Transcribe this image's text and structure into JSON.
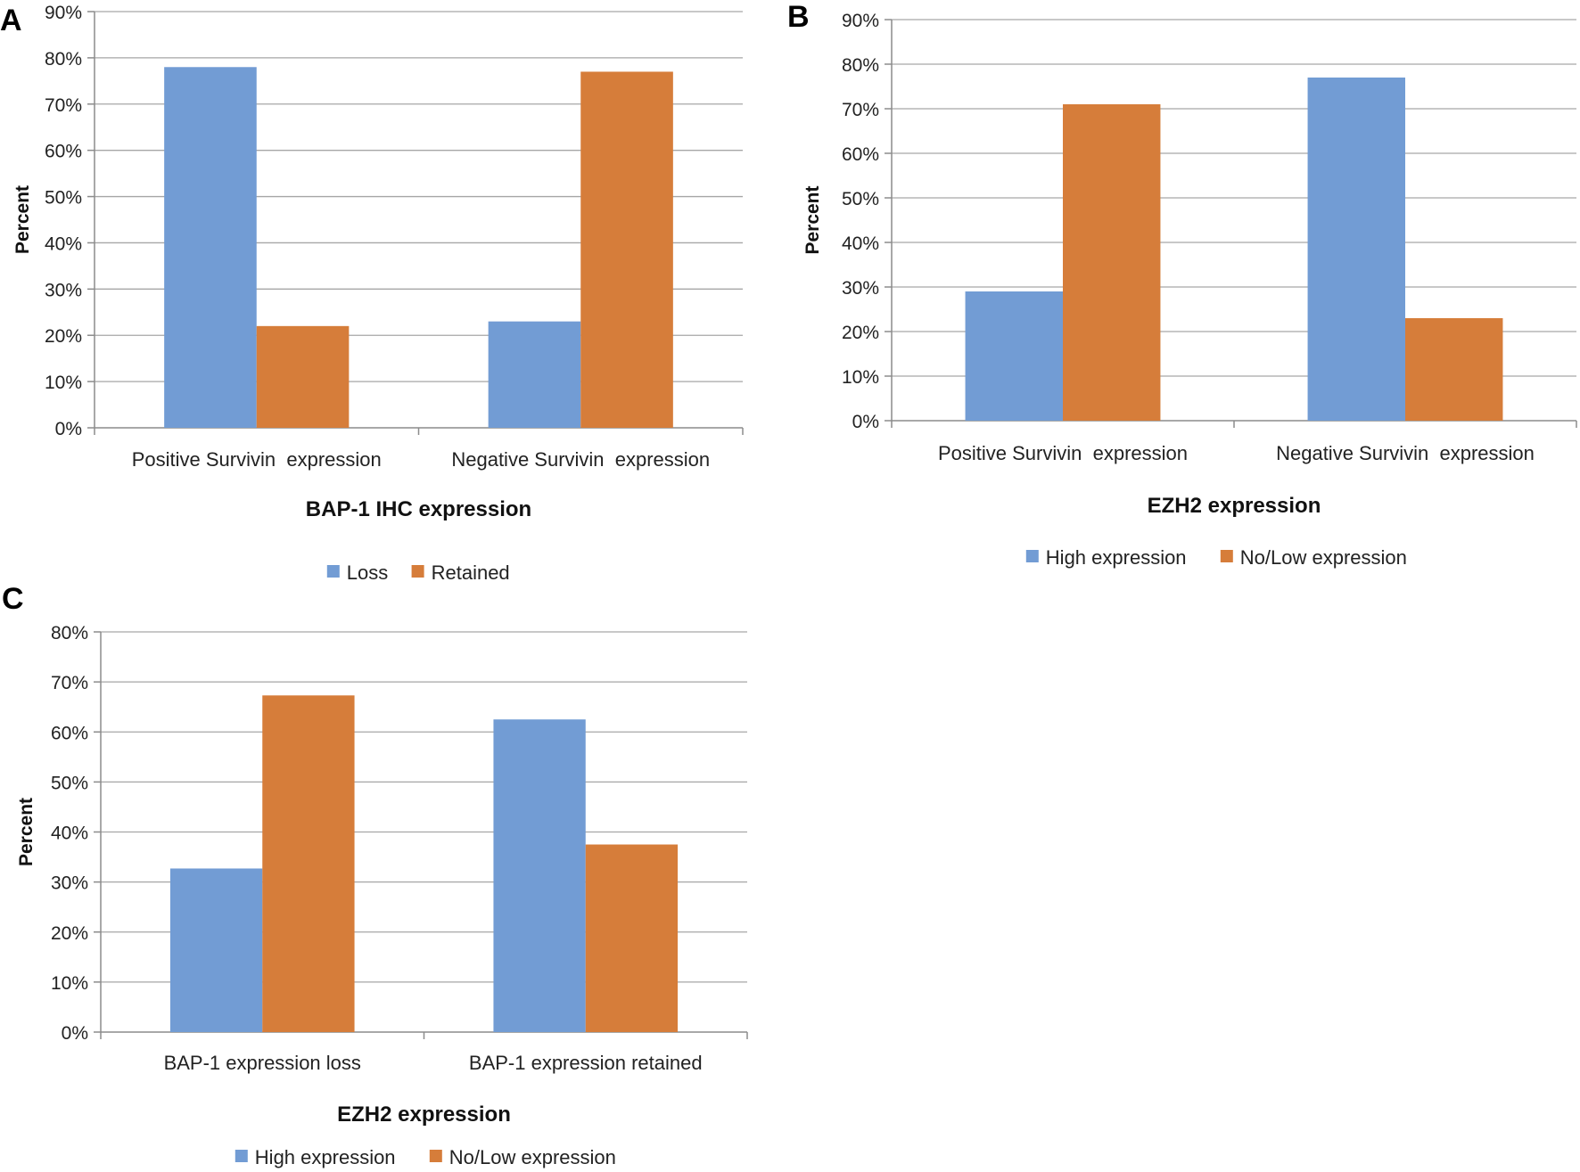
{
  "chart_data": [
    {
      "panel": "A",
      "type": "bar",
      "categories": [
        "Positive Survivin  expression",
        "Negative Survivin  expression"
      ],
      "series": [
        {
          "name": "Loss",
          "color": "#729cd4",
          "values": [
            78,
            23
          ]
        },
        {
          "name": "Retained",
          "color": "#d67d3a",
          "values": [
            22,
            77
          ]
        }
      ],
      "ylabel": "Percent",
      "xlabel": "BAP-1 IHC expression",
      "ylim": [
        0,
        90
      ],
      "ytick_step": 10,
      "grid": true,
      "legend_position": "bottom-center"
    },
    {
      "panel": "B",
      "type": "bar",
      "categories": [
        "Positive Survivin  expression",
        "Negative Survivin  expression"
      ],
      "series": [
        {
          "name": "High expression",
          "color": "#729cd4",
          "values": [
            29,
            77
          ]
        },
        {
          "name": "No/Low expression",
          "color": "#d67d3a",
          "values": [
            71,
            23
          ]
        }
      ],
      "ylabel": "Percent",
      "xlabel": "EZH2 expression",
      "ylim": [
        0,
        90
      ],
      "ytick_step": 10,
      "grid": true,
      "legend_position": "bottom-center"
    },
    {
      "panel": "C",
      "type": "bar",
      "categories": [
        "BAP-1 expression loss",
        "BAP-1 expression retained"
      ],
      "series": [
        {
          "name": "High expression",
          "color": "#729cd4",
          "values": [
            32.7,
            62.5
          ]
        },
        {
          "name": "No/Low expression",
          "color": "#d67d3a",
          "values": [
            67.3,
            37.5
          ]
        }
      ],
      "ylabel": "Percent",
      "xlabel": "EZH2 expression",
      "ylim": [
        0,
        80
      ],
      "ytick_step": 10,
      "grid": true,
      "legend_position": "bottom-center"
    }
  ]
}
